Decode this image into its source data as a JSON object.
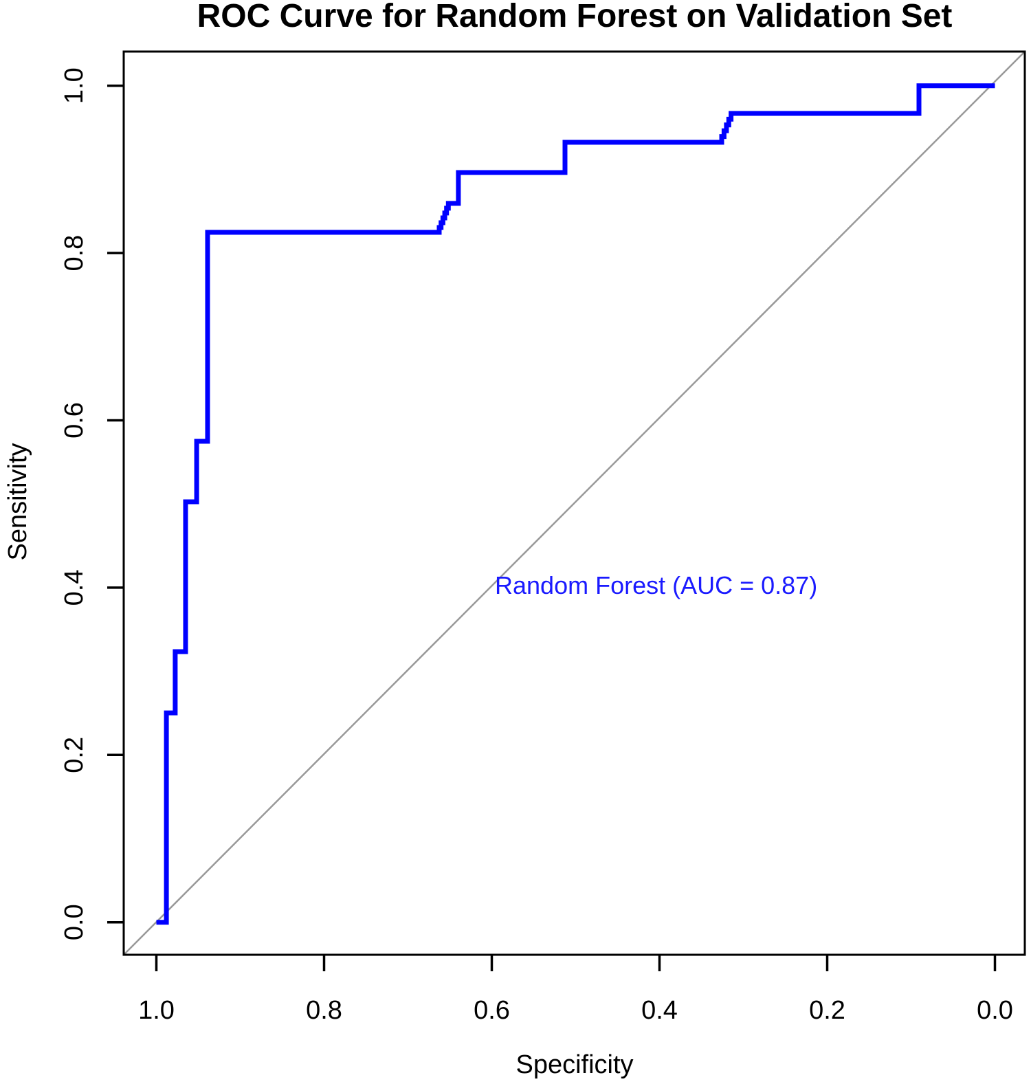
{
  "chart_data": {
    "type": "line",
    "subtype": "roc-step-curve",
    "title": "ROC Curve for Random Forest on Validation Set",
    "xlabel": "Specificity",
    "ylabel": "Sensitivity",
    "grid": false,
    "legend_position": "none",
    "x_axis": {
      "min": 0.0,
      "max": 1.0,
      "reversed": true,
      "tick_values": [
        1.0,
        0.8,
        0.6,
        0.4,
        0.2,
        0.0
      ],
      "tick_labels": [
        "1.0",
        "0.8",
        "0.6",
        "0.4",
        "0.2",
        "0.0"
      ]
    },
    "y_axis": {
      "min": 0.0,
      "max": 1.0,
      "tick_values": [
        0.0,
        0.2,
        0.4,
        0.6,
        0.8,
        1.0
      ],
      "tick_labels": [
        "0.0",
        "0.2",
        "0.4",
        "0.6",
        "0.8",
        "1.0"
      ],
      "tick_label_rotation": -90
    },
    "series": [
      {
        "name": "Random Forest",
        "auc": 0.87,
        "color": "#0000ff",
        "points_spec_sens": [
          [
            1.0,
            0.0
          ],
          [
            0.988,
            0.0
          ],
          [
            0.988,
            0.2503
          ],
          [
            0.9775,
            0.2503
          ],
          [
            0.9775,
            0.3235
          ],
          [
            0.9652,
            0.3235
          ],
          [
            0.9652,
            0.5026
          ],
          [
            0.952,
            0.5026
          ],
          [
            0.952,
            0.5749
          ],
          [
            0.9389,
            0.5749
          ],
          [
            0.9389,
            0.8247
          ],
          [
            0.6627,
            0.8247
          ],
          [
            0.6627,
            0.8305
          ],
          [
            0.6605,
            0.8305
          ],
          [
            0.6605,
            0.8362
          ],
          [
            0.6583,
            0.8362
          ],
          [
            0.6583,
            0.842
          ],
          [
            0.6561,
            0.842
          ],
          [
            0.6561,
            0.8478
          ],
          [
            0.6539,
            0.8478
          ],
          [
            0.6539,
            0.8536
          ],
          [
            0.6518,
            0.8536
          ],
          [
            0.6518,
            0.8593
          ],
          [
            0.6496,
            0.8593
          ],
          [
            0.6398,
            0.8593
          ],
          [
            0.6398,
            0.8962
          ],
          [
            0.5127,
            0.8962
          ],
          [
            0.5127,
            0.9324
          ],
          [
            0.3258,
            0.9324
          ],
          [
            0.3258,
            0.9393
          ],
          [
            0.323,
            0.9393
          ],
          [
            0.323,
            0.9462
          ],
          [
            0.3202,
            0.9462
          ],
          [
            0.3202,
            0.9531
          ],
          [
            0.3174,
            0.9531
          ],
          [
            0.3174,
            0.96
          ],
          [
            0.3147,
            0.96
          ],
          [
            0.3147,
            0.9669
          ],
          [
            0.3119,
            0.9669
          ],
          [
            0.0906,
            0.9669
          ],
          [
            0.0906,
            1.0
          ],
          [
            0.0,
            1.0
          ]
        ]
      }
    ],
    "reference_line": {
      "description": "chance diagonal from (specificity 1.0, sensitivity 0.0) to (specificity 0.0, sensitivity 1.0)",
      "color": "#999999"
    },
    "annotation": {
      "text": "Random Forest (AUC = 0.87)",
      "color": "#1a1aff",
      "x_spec": 0.404,
      "y_sens": 0.402
    },
    "colors": {
      "curve": "#0000ff",
      "diagonal": "#999999",
      "axis": "#000000",
      "background": "#ffffff"
    }
  }
}
